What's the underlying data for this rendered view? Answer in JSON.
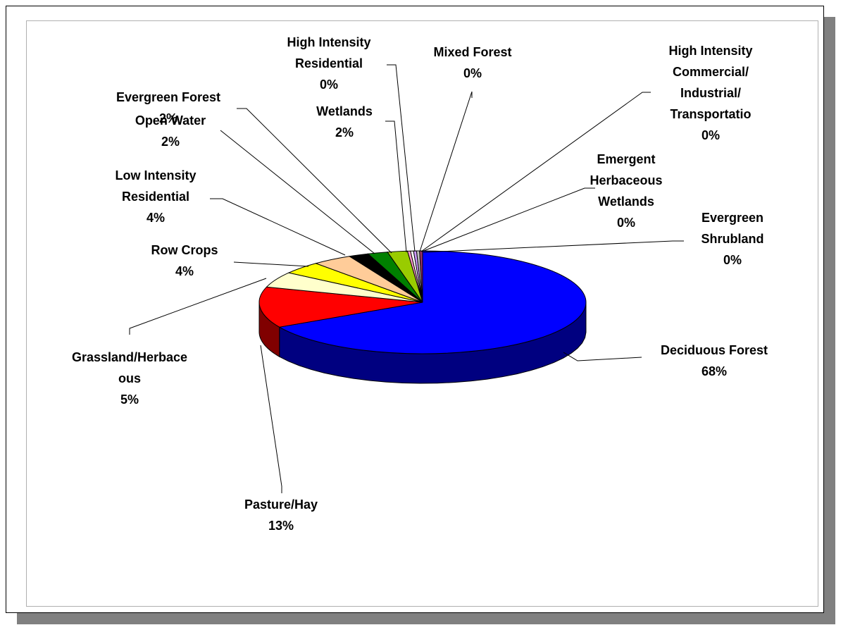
{
  "chart_data": {
    "type": "pie",
    "style": "3d",
    "slices": [
      {
        "name": "Deciduous Forest",
        "value": 68,
        "pct_label": "68%",
        "label_lines": [
          "Deciduous Forest"
        ],
        "top_color": "#0000ff",
        "side_color": "#000080"
      },
      {
        "name": "Pasture/Hay",
        "value": 13,
        "pct_label": "13%",
        "label_lines": [
          "Pasture/Hay"
        ],
        "top_color": "#ff0000",
        "side_color": "#800000"
      },
      {
        "name": "Grassland/Herbaceous",
        "value": 5,
        "pct_label": "5%",
        "label_lines": [
          "Grassland/Herbace",
          "ous"
        ],
        "top_color": "#ffffcc",
        "side_color": "#808066"
      },
      {
        "name": "Row Crops",
        "value": 4,
        "pct_label": "4%",
        "label_lines": [
          "Row Crops"
        ],
        "top_color": "#ffff00",
        "side_color": "#808000"
      },
      {
        "name": "Low Intensity Residential",
        "value": 4,
        "pct_label": "4%",
        "label_lines": [
          "Low Intensity",
          "Residential"
        ],
        "top_color": "#ffcc99",
        "side_color": "#806650"
      },
      {
        "name": "Open Water",
        "value": 2,
        "pct_label": "2%",
        "label_lines": [
          "Open Water"
        ],
        "top_color": "#000000",
        "side_color": "#000000"
      },
      {
        "name": "Evergreen Forest",
        "value": 2,
        "pct_label": "2%",
        "label_lines": [
          "Evergreen Forest"
        ],
        "top_color": "#008000",
        "side_color": "#004000"
      },
      {
        "name": "Wetlands",
        "value": 2,
        "pct_label": "2%",
        "label_lines": [
          "Wetlands"
        ],
        "top_color": "#99cc00",
        "side_color": "#4d6600"
      },
      {
        "name": "High Intensity Residential",
        "value": 0.3,
        "pct_label": "0%",
        "label_lines": [
          "High Intensity",
          "Residential"
        ],
        "top_color": "#ff99cc",
        "side_color": "#804d66"
      },
      {
        "name": "Mixed Forest",
        "value": 0.3,
        "pct_label": "0%",
        "label_lines": [
          "Mixed Forest"
        ],
        "top_color": "#ffffff",
        "side_color": "#808080"
      },
      {
        "name": "High Intensity Commercial/Industrial/Transportation",
        "value": 0.3,
        "pct_label": "0%",
        "label_lines": [
          "High Intensity",
          "Commercial/",
          "Industrial/",
          "Transportatio"
        ],
        "top_color": "#cc99ff",
        "side_color": "#664d80"
      },
      {
        "name": "Emergent Herbaceous Wetlands",
        "value": 0.3,
        "pct_label": "0%",
        "label_lines": [
          "Emergent",
          "Herbaceous",
          "Wetlands"
        ],
        "top_color": "#c0c0c0",
        "side_color": "#606060"
      },
      {
        "name": "Evergreen Shrubland",
        "value": 0.3,
        "pct_label": "0%",
        "label_lines": [
          "Evergreen",
          "Shrubland"
        ],
        "top_color": "#993366",
        "side_color": "#4d1a33"
      }
    ]
  }
}
